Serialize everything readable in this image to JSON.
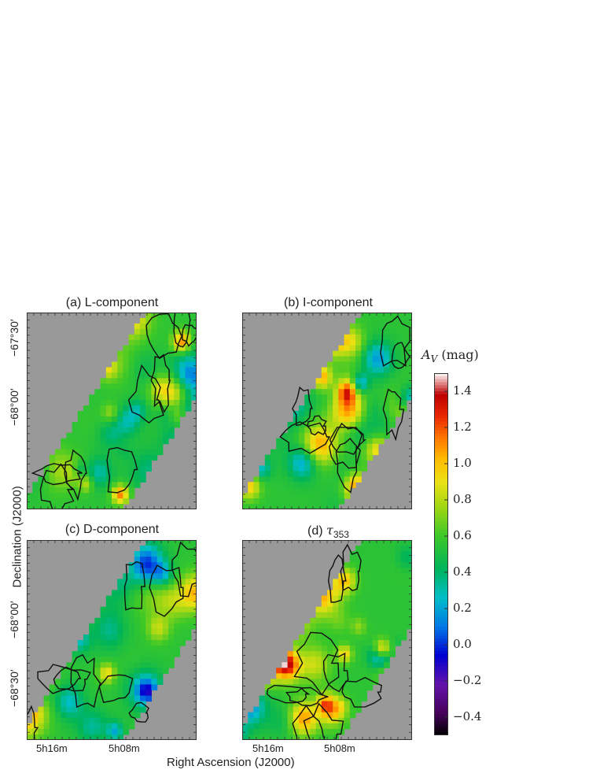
{
  "chart_data": {
    "type": "heatmap",
    "panels": [
      {
        "id": "a",
        "title": "(a) L-component",
        "y_ticks": [
          "−67°30′",
          "−68°00′"
        ]
      },
      {
        "id": "b",
        "title": "(b) I-component",
        "y_ticks": []
      },
      {
        "id": "c",
        "title": "(c) D-component",
        "y_ticks": [
          "−68°00′",
          "−68°30′"
        ],
        "x_ticks": [
          "5h16m",
          "5h08m"
        ]
      },
      {
        "id": "d",
        "title_prefix": "(d) ",
        "title_symbol": "τ",
        "title_sub": "353",
        "y_ticks": [],
        "x_ticks": [
          "5h16m",
          "5h08m"
        ]
      }
    ],
    "xlabel": "Right Ascension (J2000)",
    "ylabel": "Declination (J2000)",
    "colorbar": {
      "label_symbol": "A",
      "label_sub": "V",
      "label_unit": "(mag)",
      "range": [
        -0.5,
        1.5
      ],
      "ticks": [
        "1.4",
        "1.2",
        "1.0",
        "0.8",
        "0.6",
        "0.4",
        "0.2",
        "0.0",
        "−0.2",
        "−0.4"
      ],
      "tick_values": [
        1.4,
        1.2,
        1.0,
        0.8,
        0.6,
        0.4,
        0.2,
        0.0,
        -0.2,
        -0.4
      ]
    },
    "background_color": "#999999"
  }
}
